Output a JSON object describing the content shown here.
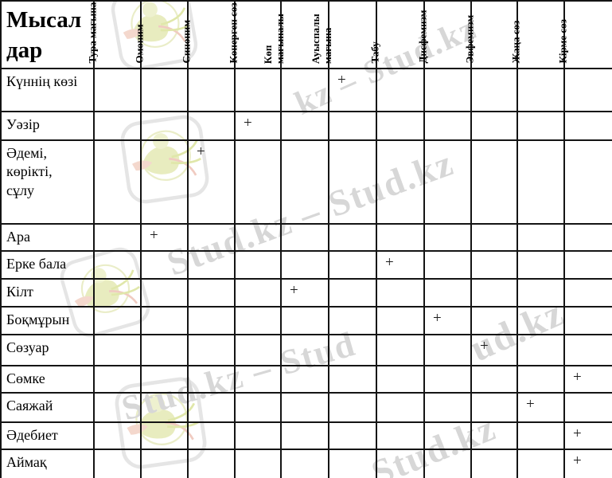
{
  "document": {
    "kind": "lexicology-examples-table"
  },
  "watermark": {
    "brand": "Stud.kz",
    "color": "#d7d7d7",
    "fragments": [
      "kz – Stud.kz",
      "Stud.kz – Stud.kz",
      "Stud.kz – Stud",
      "ud.kz",
      "Stud.kz"
    ],
    "logo": {
      "name": "stud-kz-bird-logo",
      "outline_color": "#e4e4e4",
      "ring_color": "#e9edc6",
      "body_color": "#e7ebbc",
      "head_color": "#eef1cd",
      "wing_color": "#f4d6cb",
      "swoosh_pink": "#f0c9be",
      "swoosh_green": "#dfe6a6"
    }
  },
  "table": {
    "corner_title": "Мысал дар",
    "plus_symbol": "+",
    "columns": [
      "Тура мағына",
      "Омоним",
      "Синоним",
      "Көнерген сөз",
      "Көп мағыналы",
      "Ауыспалы мағына",
      "Табу",
      "Дисфемизм",
      "Эвфемизм",
      "Жаңа сөз",
      "Кірме сөз"
    ],
    "rows": [
      {
        "label": "Күннің көзі",
        "plus_column": "Ауыспалы мағына",
        "plus_col_index": 5
      },
      {
        "label": "Уәзір",
        "plus_column": "Көнерген сөз",
        "plus_col_index": 3
      },
      {
        "label": "Әдемі,\nкөрікті,\nсұлу",
        "plus_column": "Синоним",
        "plus_col_index": 2
      },
      {
        "label": "Ара",
        "plus_column": "Омоним",
        "plus_col_index": 1
      },
      {
        "label": "Ерке бала",
        "plus_column": "Табу",
        "plus_col_index": 6
      },
      {
        "label": "Кілт",
        "plus_column": "Көп мағыналы",
        "plus_col_index": 4
      },
      {
        "label": "Боқмұрын",
        "plus_column": "Дисфемизм",
        "plus_col_index": 7
      },
      {
        "label": "Сөзуар",
        "plus_column": "Эвфемизм",
        "plus_col_index": 8
      },
      {
        "label": "Сөмке",
        "plus_column": "Кірме сөз",
        "plus_col_index": 10
      },
      {
        "label": "Саяжай",
        "plus_column": "Жаңа сөз",
        "plus_col_index": 9
      },
      {
        "label": "Әдебиет",
        "plus_column": "Кірме сөз",
        "plus_col_index": 10
      },
      {
        "label": "Аймақ",
        "plus_column": "Кірме сөз",
        "plus_col_index": 10
      }
    ]
  }
}
